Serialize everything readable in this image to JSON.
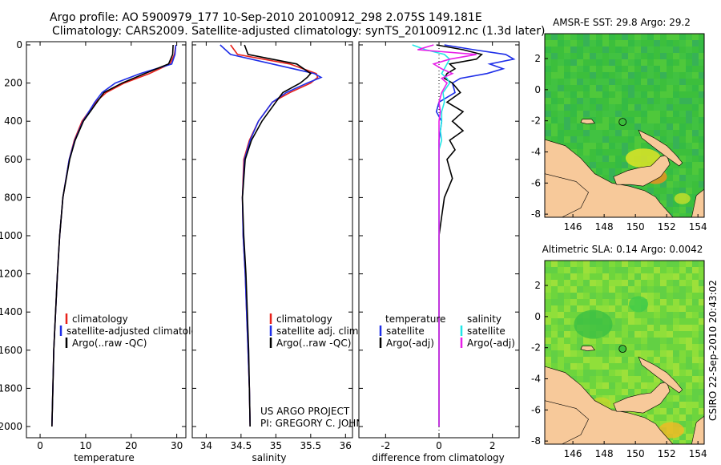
{
  "header": {
    "title_line1": "Argo profile: AO 5900979_177 10-Sep-2010 20100912_298 2.075S 149.181E",
    "title_line2": "Climatology: CARS2009. Satellite-adjusted climatology: synTS_20100912.nc (1.3d later)"
  },
  "credit": {
    "project": "US ARGO PROJECT",
    "pi": "PI: GREGORY C. JOHNSON",
    "stamp": "CSIRO 22-Sep-2010 20:43:02"
  },
  "colors": {
    "climatology": "#e8221b",
    "satellite": "#1e2ee8",
    "argo": "#000000",
    "satellite_sal": "#21e6e6",
    "argo_sal": "#e81ee8",
    "land": "#f7c99a",
    "ocean_green": "#3cbf3c"
  },
  "chart_data": [
    {
      "type": "line",
      "xlabel": "temperature",
      "ylabel": "",
      "xlim": [
        -3,
        32
      ],
      "ylim": [
        2000,
        0
      ],
      "xticks": [
        "0",
        "10",
        "20",
        "30"
      ],
      "yticks": [
        "0",
        "200",
        "400",
        "600",
        "800",
        "1000",
        "1200",
        "1400",
        "1600",
        "1800",
        "2000"
      ],
      "depth": [
        0,
        50,
        100,
        150,
        200,
        250,
        300,
        400,
        500,
        600,
        800,
        1000,
        1200,
        1400,
        1600,
        1800,
        2000
      ],
      "legend": [
        "climatology",
        "satellite-adjusted climatology",
        "Argo(..raw -QC)"
      ],
      "series": [
        {
          "name": "climatology",
          "values": [
            29.8,
            29.5,
            28.5,
            24.0,
            18.5,
            14.5,
            12.2,
            9.2,
            7.5,
            6.4,
            5.0,
            4.3,
            3.8,
            3.4,
            3.0,
            2.8,
            2.6
          ]
        },
        {
          "name": "satellite-adjusted climatology",
          "values": [
            29.8,
            29.6,
            28.9,
            22.0,
            16.5,
            13.6,
            12.0,
            9.4,
            7.6,
            6.4,
            5.0,
            4.3,
            3.8,
            3.4,
            3.0,
            2.8,
            2.6
          ]
        },
        {
          "name": "Argo(..raw -QC)",
          "values": [
            29.2,
            29.1,
            28.2,
            23.0,
            18.0,
            14.0,
            12.5,
            9.5,
            7.7,
            6.5,
            5.0,
            4.3,
            3.8,
            3.4,
            3.0,
            2.8,
            2.6
          ]
        }
      ]
    },
    {
      "type": "line",
      "xlabel": "salinity",
      "ylabel": "",
      "xlim": [
        33.8,
        36.1
      ],
      "ylim": [
        2000,
        0
      ],
      "xticks": [
        "34",
        "34.5",
        "35",
        "35.5",
        "36"
      ],
      "depth": [
        0,
        50,
        100,
        150,
        170,
        200,
        250,
        300,
        400,
        500,
        600,
        800,
        1000,
        1200,
        1400,
        1600,
        1800,
        2000
      ],
      "legend": [
        "climatology",
        "satellite adj. clim.",
        "Argo(..raw -QC)"
      ],
      "series": [
        {
          "name": "climatology",
          "values": [
            34.35,
            34.45,
            35.2,
            35.58,
            35.6,
            35.5,
            35.2,
            34.95,
            34.75,
            34.62,
            34.54,
            34.52,
            34.53,
            34.56,
            34.58,
            34.6,
            34.62,
            34.63
          ]
        },
        {
          "name": "satellite adj. clim.",
          "values": [
            34.2,
            34.35,
            34.95,
            35.55,
            35.65,
            35.45,
            35.15,
            34.95,
            34.75,
            34.63,
            34.55,
            34.52,
            34.53,
            34.56,
            34.58,
            34.6,
            34.62,
            34.63
          ]
        },
        {
          "name": "Argo(..raw -QC)",
          "values": [
            34.55,
            34.6,
            35.3,
            35.5,
            35.45,
            35.35,
            35.1,
            35.0,
            34.8,
            34.65,
            34.56,
            34.52,
            34.54,
            34.57,
            34.59,
            34.61,
            34.62,
            34.63
          ]
        }
      ]
    },
    {
      "type": "line",
      "xlabel": "difference from climatology",
      "ylabel": "",
      "xlim": [
        -3.0,
        3.0
      ],
      "ylim": [
        2000,
        0
      ],
      "xticks": [
        "-2",
        "0",
        "2"
      ],
      "depth": [
        0,
        25,
        50,
        75,
        100,
        125,
        150,
        175,
        200,
        250,
        300,
        350,
        400,
        450,
        500,
        550,
        600,
        700,
        800,
        900,
        1000,
        1200,
        1400,
        1600,
        1800,
        2000
      ],
      "legend_temperature": [
        "temperature",
        "satellite",
        "Argo(-adj)"
      ],
      "legend_salinity": [
        "salinity",
        "satellite",
        "Argo(-adj)"
      ],
      "series": [
        {
          "name": "satellite",
          "values": [
            0.2,
            1.3,
            2.5,
            2.8,
            1.9,
            2.4,
            1.8,
            0.8,
            0.5,
            0.6,
            0.0,
            -0.1,
            0.1,
            0.05,
            0.0,
            0.0,
            0.0,
            0.0,
            0.0,
            0.0,
            0.0,
            0.0,
            0.0,
            0.0,
            0.0,
            0.0
          ]
        },
        {
          "name": "Argo(-adj)",
          "values": [
            -0.1,
            0.9,
            1.6,
            1.4,
            0.4,
            0.6,
            0.3,
            0.2,
            0.5,
            0.8,
            0.3,
            0.9,
            0.5,
            0.9,
            0.4,
            0.6,
            0.3,
            0.5,
            0.2,
            0.1,
            0.0,
            0.0,
            0.0,
            0.0,
            0.0,
            0.0
          ]
        },
        {
          "name": "satellite",
          "values": [
            -1.0,
            -0.5,
            0.2,
            0.4,
            0.3,
            0.2,
            0.1,
            0.3,
            0.4,
            0.15,
            0.2,
            0.1,
            0.1,
            0.05,
            0.1,
            0.0,
            0.0,
            0.0,
            0.0,
            0.0,
            0.0,
            0.0,
            0.0,
            0.0,
            0.0,
            0.0
          ]
        },
        {
          "name": "Argo(-adj)",
          "values": [
            -0.2,
            -0.8,
            1.4,
            0.4,
            -0.2,
            0.1,
            0.5,
            0.1,
            0.3,
            0.1,
            0.0,
            0.05,
            0.0,
            0.0,
            0.0,
            0.0,
            0.0,
            0.0,
            0.0,
            0.0,
            0.0,
            0.0,
            0.0,
            0.0,
            0.0,
            0.0
          ]
        }
      ]
    },
    {
      "type": "heatmap",
      "title": "AMSR-E SST: 29.8 Argo: 29.2",
      "xlim": [
        144.2,
        154.4
      ],
      "ylim": [
        -8.2,
        3.6
      ],
      "xticks": [
        "146",
        "148",
        "150",
        "152",
        "154"
      ],
      "yticks": [
        "2",
        "0",
        "-2",
        "-4",
        "-6",
        "-8"
      ],
      "float_position": [
        149.181,
        -2.075
      ]
    },
    {
      "type": "heatmap",
      "title": "Altimetric SLA: 0.14 Argo: 0.0042",
      "xlim": [
        144.2,
        154.4
      ],
      "ylim": [
        -8.2,
        3.6
      ],
      "xticks": [
        "146",
        "148",
        "150",
        "152",
        "154"
      ],
      "yticks": [
        "2",
        "0",
        "-2",
        "-4",
        "-6",
        "-8"
      ],
      "float_position": [
        149.181,
        -2.075
      ]
    }
  ]
}
